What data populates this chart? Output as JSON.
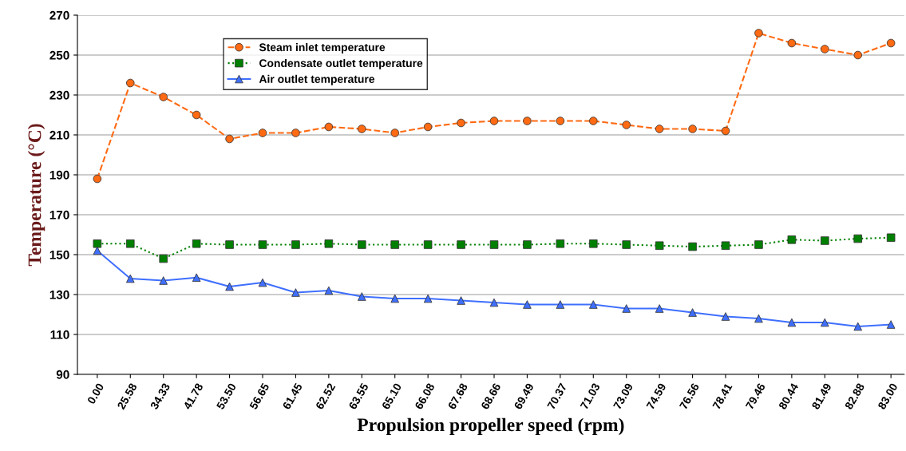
{
  "chart_data": {
    "type": "line",
    "xlabel": "Propulsion propeller speed (rpm)",
    "ylabel": "Temperature (°C)",
    "categories": [
      "0.00",
      "25.58",
      "34.33",
      "41.78",
      "53.50",
      "56.65",
      "61.45",
      "62.52",
      "63.55",
      "65.10",
      "66.08",
      "67.68",
      "68.66",
      "69.49",
      "70.37",
      "71.03",
      "73.09",
      "74.59",
      "76.56",
      "78.41",
      "79.46",
      "80.44",
      "81.49",
      "82.88",
      "83.00"
    ],
    "series": [
      {
        "name": "Steam inlet temperature",
        "color": "#ff6a13",
        "marker": "circle",
        "line_style": "dashed",
        "values": [
          188,
          236,
          229,
          220,
          208,
          211,
          211,
          214,
          213,
          211,
          214,
          216,
          217,
          217,
          217,
          217,
          215,
          213,
          213,
          212,
          261,
          256,
          253,
          250,
          256
        ]
      },
      {
        "name": "Condensate outlet temperature",
        "color": "#008000",
        "marker": "square",
        "line_style": "dotted",
        "values": [
          155.5,
          155.5,
          148,
          155.5,
          155,
          155,
          155,
          155.5,
          155,
          155,
          155,
          155,
          155,
          155,
          155.5,
          155.5,
          155,
          154.5,
          154,
          154.5,
          155,
          157.5,
          157,
          158,
          158.5
        ]
      },
      {
        "name": "Air outlet temperature",
        "color": "#3f6fff",
        "marker": "triangle",
        "line_style": "solid",
        "values": [
          152,
          138,
          137,
          138.5,
          134,
          136,
          131,
          132,
          129,
          128,
          128,
          127,
          126,
          125,
          125,
          125,
          123,
          123,
          121,
          119,
          118,
          116,
          116,
          114,
          115
        ]
      }
    ],
    "ylim": [
      90,
      270
    ],
    "yticks": [
      90,
      110,
      130,
      150,
      170,
      190,
      210,
      230,
      250,
      270
    ],
    "grid": "y",
    "legend": "top left"
  }
}
